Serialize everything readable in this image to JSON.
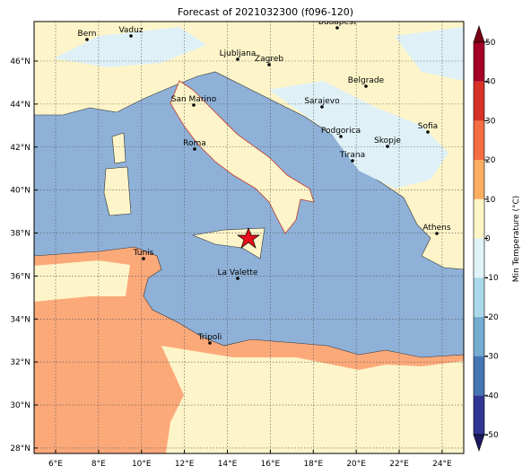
{
  "map": {
    "title": "Forecast of 2021032300 (f096-120)",
    "lon_ticks": [
      {
        "value": 6,
        "label": "6°E"
      },
      {
        "value": 8,
        "label": "8°E"
      },
      {
        "value": 10,
        "label": "10°E"
      },
      {
        "value": 12,
        "label": "12°E"
      },
      {
        "value": 14,
        "label": "14°E"
      },
      {
        "value": 16,
        "label": "16°E"
      },
      {
        "value": 18,
        "label": "18°E"
      },
      {
        "value": 20,
        "label": "20°E"
      },
      {
        "value": 22,
        "label": "22°E"
      },
      {
        "value": 24,
        "label": "24°E"
      }
    ],
    "lat_ticks": [
      {
        "value": 28,
        "label": "28°N"
      },
      {
        "value": 30,
        "label": "30°N"
      },
      {
        "value": 32,
        "label": "32°N"
      },
      {
        "value": 34,
        "label": "34°N"
      },
      {
        "value": 36,
        "label": "36°N"
      },
      {
        "value": 38,
        "label": "38°N"
      },
      {
        "value": 40,
        "label": "40°N"
      },
      {
        "value": 42,
        "label": "42°N"
      },
      {
        "value": 44,
        "label": "44°N"
      },
      {
        "value": 46,
        "label": "46°N"
      }
    ],
    "cities": [
      "Bern",
      "Vaduz",
      "Budapest",
      "Ljubljana",
      "Zagreb",
      "Belgrade",
      "San Marino",
      "Sarajevo",
      "Sofia",
      "Podgorica",
      "Skopje",
      "Roma",
      "Tirana",
      "Athens",
      "Tunis",
      "La Valette",
      "Tripoli"
    ],
    "colorbar": {
      "label": "Min Temperature (°C)",
      "ticks": [
        -50,
        -40,
        -30,
        -20,
        -10,
        0,
        10,
        20,
        30,
        40,
        50
      ],
      "colors": [
        "#313695",
        "#4575b4",
        "#74add1",
        "#abd9e9",
        "#e0f3f8",
        "#fff6c8",
        "#fdae61",
        "#f46d43",
        "#d73027",
        "#a50026"
      ],
      "under_color": "#1a1a5e",
      "over_color": "#7a0015"
    }
  }
}
